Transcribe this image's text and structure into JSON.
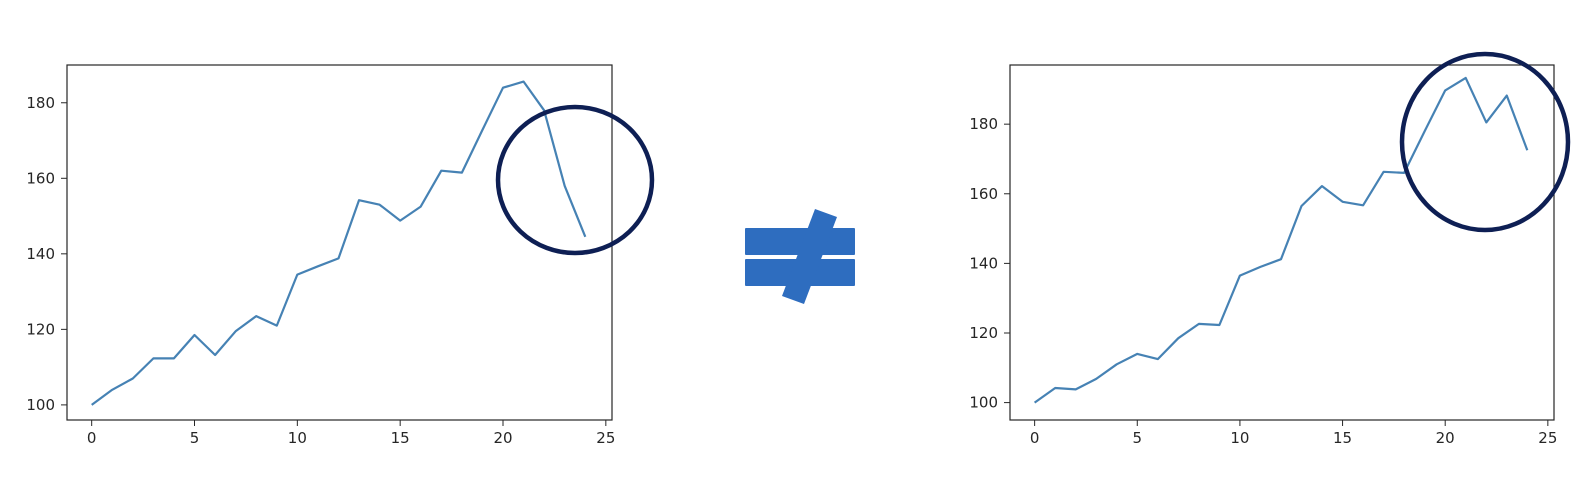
{
  "colors": {
    "line": "#4682b4",
    "axes": "#262626",
    "circle": "#0e1f54",
    "not_equal": "#2e6dbf"
  },
  "icons": {
    "comparison": "not-equal-icon",
    "highlight": "circle-outline"
  },
  "chart_data": [
    {
      "type": "line",
      "x": [
        0,
        1,
        2,
        3,
        4,
        5,
        6,
        7,
        8,
        9,
        10,
        11,
        12,
        13,
        14,
        15,
        16,
        17,
        18,
        19,
        20,
        21,
        22,
        23,
        24
      ],
      "series": [
        {
          "values": [
            100,
            104,
            107,
            112.3,
            112.3,
            118.5,
            113.2,
            119.5,
            123.5,
            121,
            134.5,
            136.7,
            138.8,
            154.2,
            153,
            148.8,
            152.5,
            162,
            161.5,
            172.8,
            184,
            185.6,
            178,
            158,
            144.5
          ]
        }
      ],
      "xlim": [
        -1.2,
        25.3
      ],
      "ylim": [
        96,
        190
      ],
      "xticks": [
        "0",
        "5",
        "10",
        "15",
        "20",
        "25"
      ],
      "yticks": [
        "100",
        "120",
        "140",
        "160",
        "180"
      ],
      "xlabel": "",
      "ylabel": "",
      "grid": false,
      "highlight": "circled region at x 20–24"
    },
    {
      "type": "line",
      "x": [
        0,
        1,
        2,
        3,
        4,
        5,
        6,
        7,
        8,
        9,
        10,
        11,
        12,
        13,
        14,
        15,
        16,
        17,
        18,
        19,
        20,
        21,
        22,
        23,
        24
      ],
      "series": [
        {
          "values": [
            100,
            104.2,
            103.8,
            106.8,
            111,
            114,
            112.5,
            118.5,
            122.6,
            122.3,
            136.5,
            139,
            141.2,
            156.5,
            162.2,
            157.7,
            156.7,
            166.3,
            166,
            178,
            189.7,
            193.3,
            180.5,
            188.2,
            172.5
          ]
        }
      ],
      "xlim": [
        -1.2,
        25.3
      ],
      "ylim": [
        95,
        197
      ],
      "xticks": [
        "0",
        "5",
        "10",
        "15",
        "20",
        "25"
      ],
      "yticks": [
        "100",
        "120",
        "140",
        "160",
        "180"
      ],
      "xlabel": "",
      "ylabel": "",
      "grid": false,
      "highlight": "circled region at x 18–24"
    }
  ]
}
